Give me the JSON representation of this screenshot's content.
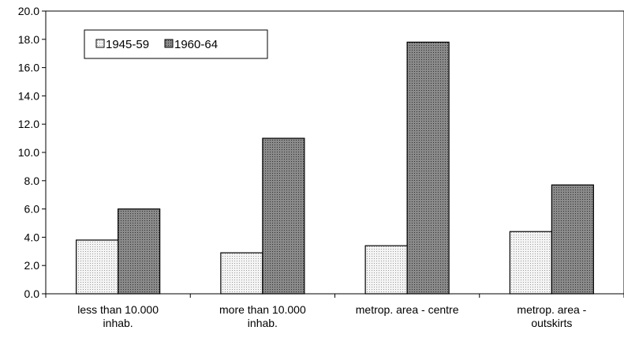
{
  "chart_data": {
    "type": "bar",
    "categories": [
      [
        "less than 10.000",
        "inhab."
      ],
      [
        "more than 10.000",
        "inhab."
      ],
      [
        "metrop. area - centre"
      ],
      [
        "metrop. area -",
        "outskirts"
      ]
    ],
    "series": [
      {
        "name": "1945-59",
        "values": [
          3.8,
          2.9,
          3.4,
          4.4
        ],
        "color": "#e8e8e8",
        "pattern": "light-dots"
      },
      {
        "name": "1960-64",
        "values": [
          6.0,
          11.0,
          17.8,
          7.7
        ],
        "color": "#7a7a7a",
        "pattern": "dark-dots"
      }
    ],
    "ylim": [
      0,
      20
    ],
    "yticks": [
      "0.0",
      "2.0",
      "4.0",
      "6.0",
      "8.0",
      "10.0",
      "12.0",
      "14.0",
      "16.0",
      "18.0",
      "20.0"
    ],
    "grid": false,
    "legend": "top-left"
  }
}
